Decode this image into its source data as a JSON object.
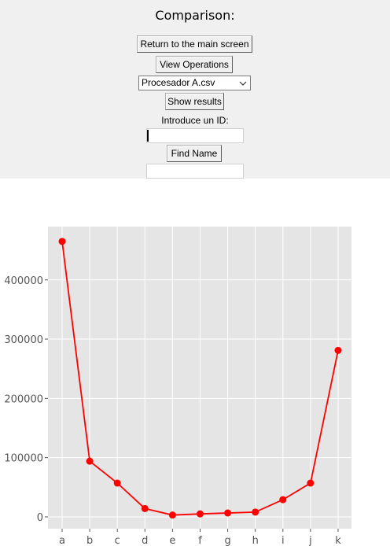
{
  "window": {
    "title": "Comparison:",
    "return_label": "Return to the main screen",
    "view_ops_label": "View Operations",
    "file_select_value": "Procesador A.csv",
    "show_results_label": "Show results",
    "id_prompt": "Introduce un ID:",
    "id_input_value": "",
    "find_name_label": "Find Name",
    "name_output_value": ""
  },
  "chart_data": {
    "type": "line",
    "categories": [
      "a",
      "b",
      "c",
      "d",
      "e",
      "f",
      "g",
      "h",
      "i",
      "j",
      "k"
    ],
    "series": [
      {
        "values": [
          465000,
          94000,
          57000,
          14000,
          3000,
          5000,
          6500,
          8000,
          29000,
          57000,
          281000
        ]
      }
    ],
    "yticks": [
      0,
      100000,
      200000,
      300000,
      400000
    ],
    "ytick_labels": [
      "0",
      "100000",
      "200000",
      "300000",
      "400000"
    ],
    "ylim": [
      -20000,
      490000
    ],
    "grid": true,
    "style": "ggplot",
    "line_color": "#ff0000",
    "background_color": "#e5e5e5"
  }
}
